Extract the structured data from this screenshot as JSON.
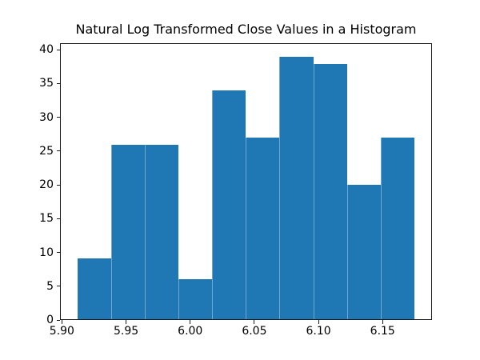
{
  "chart_data": {
    "type": "bar",
    "subtype": "histogram",
    "title": "Natural Log Transformed Close Values in a Histogram",
    "xlabel": "",
    "ylabel": "",
    "bin_edges": [
      5.9115,
      5.9379,
      5.9643,
      5.9906,
      6.017,
      6.0434,
      6.0698,
      6.0962,
      6.1226,
      6.1489,
      6.1753
    ],
    "counts": [
      9,
      26,
      26,
      6,
      34,
      27,
      39,
      38,
      20,
      27
    ],
    "xlim": [
      5.8985,
      6.1885
    ],
    "ylim": [
      0,
      40.95
    ],
    "x_ticks": [
      {
        "value": 5.9,
        "label": "5.90"
      },
      {
        "value": 5.95,
        "label": "5.95"
      },
      {
        "value": 6.0,
        "label": "6.00"
      },
      {
        "value": 6.05,
        "label": "6.05"
      },
      {
        "value": 6.1,
        "label": "6.10"
      },
      {
        "value": 6.15,
        "label": "6.15"
      }
    ],
    "y_ticks": [
      {
        "value": 0,
        "label": "0"
      },
      {
        "value": 5,
        "label": "5"
      },
      {
        "value": 10,
        "label": "10"
      },
      {
        "value": 15,
        "label": "15"
      },
      {
        "value": 20,
        "label": "20"
      },
      {
        "value": 25,
        "label": "25"
      },
      {
        "value": 30,
        "label": "30"
      },
      {
        "value": 35,
        "label": "35"
      },
      {
        "value": 40,
        "label": "40"
      }
    ],
    "bar_color": "#1f77b4",
    "spine_color": "#1a1a1a",
    "background_color": "#ffffff",
    "grid": false,
    "legend_position": "none"
  }
}
